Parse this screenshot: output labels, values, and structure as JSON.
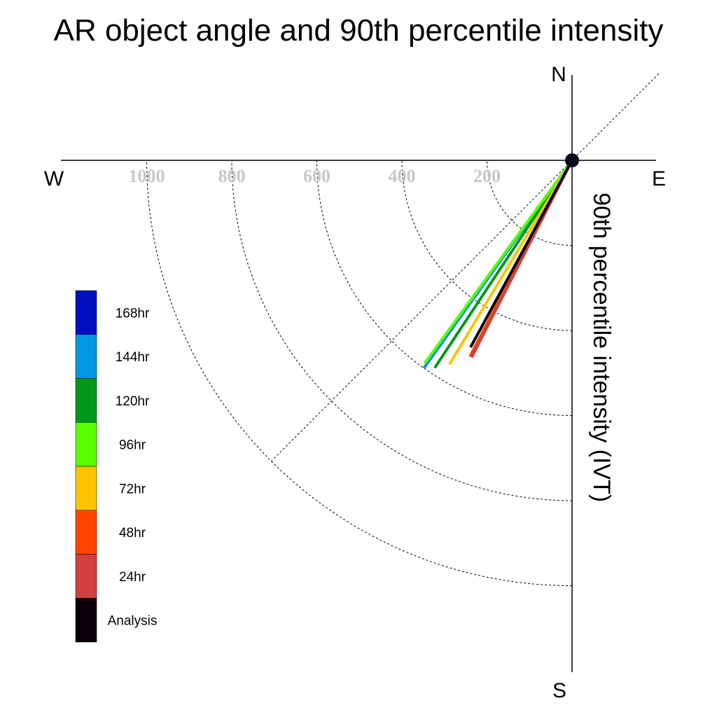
{
  "chart_data": {
    "type": "polar-vector",
    "title": "AR object angle and 90th percentile intensity",
    "ylabel": "90th percentile intensity (IVT)",
    "compass": {
      "north": "N",
      "south": "S",
      "east": "E",
      "west": "W"
    },
    "radial_ticks": [
      200,
      400,
      600,
      800,
      1000
    ],
    "radial_tick_labels": [
      "200",
      "400",
      "600",
      "800",
      "1000"
    ],
    "rmax": 1200,
    "reference_angle_deg": 225,
    "series": [
      {
        "name": "168hr",
        "color": "#0010c0",
        "angle_deg": 215.5,
        "value": 600
      },
      {
        "name": "144hr",
        "color": "#0098e0",
        "angle_deg": 215.5,
        "value": 600
      },
      {
        "name": "120hr",
        "color": "#009818",
        "angle_deg": 213.5,
        "value": 585
      },
      {
        "name": "96hr",
        "color": "#58ff00",
        "angle_deg": 216.0,
        "value": 590
      },
      {
        "name": "72hr",
        "color": "#ffc400",
        "angle_deg": 211.0,
        "value": 560
      },
      {
        "name": "48hr",
        "color": "#ff4400",
        "angle_deg": 207.5,
        "value": 520
      },
      {
        "name": "24hr",
        "color": "#d04040",
        "angle_deg": 207.0,
        "value": 520
      },
      {
        "name": "Analysis",
        "color": "#0c0008",
        "angle_deg": 208.5,
        "value": 500
      }
    ],
    "legend_order": [
      "168hr",
      "144hr",
      "120hr",
      "96hr",
      "72hr",
      "48hr",
      "24hr",
      "Analysis"
    ]
  }
}
